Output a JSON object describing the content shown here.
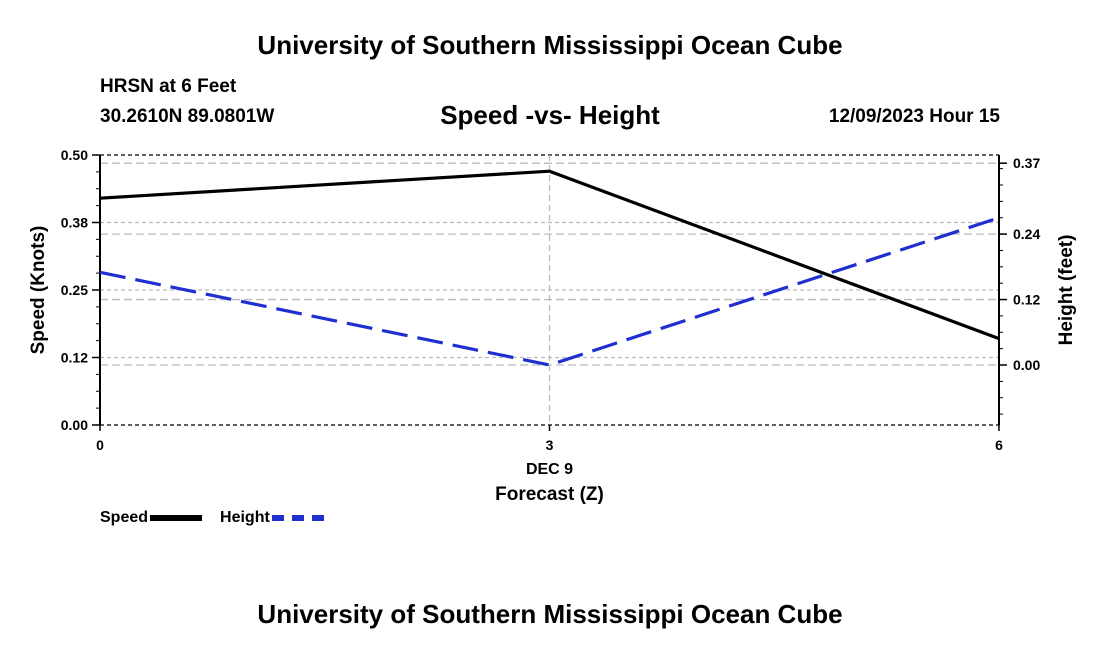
{
  "header": {
    "title": "University of Southern Mississippi Ocean Cube",
    "station": "HRSN at 6 Feet",
    "coordinates": "30.2610N  89.0801W",
    "subtitle": "Speed -vs- Height",
    "datetime": "12/09/2023 Hour 15"
  },
  "footer": {
    "title": "University of Southern Mississippi Ocean Cube"
  },
  "legend": {
    "speed_label": "Speed",
    "height_label": "Height"
  },
  "colors": {
    "speed": "#000000",
    "height": "#1f2fd0",
    "grid": "#bbbbbb"
  },
  "chart_data": {
    "type": "line",
    "x": [
      0,
      3,
      6
    ],
    "x_tick_labels": [
      "0",
      "3",
      "6"
    ],
    "x_sublabel": "DEC 9",
    "xlabel": "Forecast (Z)",
    "xlim": [
      0,
      6
    ],
    "ylabel_left": "Speed (Knots)",
    "ylim_left": [
      0,
      0.5
    ],
    "yticks_left": [
      0.0,
      0.125,
      0.25,
      0.375,
      0.5
    ],
    "ytick_labels_left": [
      "0.00",
      "0.12",
      "0.25",
      "0.38",
      "0.50"
    ],
    "ylabel_right": "Height (feet)",
    "ylim_right": [
      -0.11,
      0.385
    ],
    "yticks_right": [
      0.0,
      0.12,
      0.24,
      0.37
    ],
    "ytick_labels_right": [
      "0.00",
      "0.12",
      "0.24",
      "0.37"
    ],
    "series": [
      {
        "name": "Speed",
        "axis": "left",
        "style": "solid",
        "values": [
          0.42,
          0.47,
          0.16
        ]
      },
      {
        "name": "Height",
        "axis": "right",
        "style": "dashed",
        "values": [
          0.17,
          0.0,
          0.27
        ]
      }
    ],
    "grid": true
  }
}
